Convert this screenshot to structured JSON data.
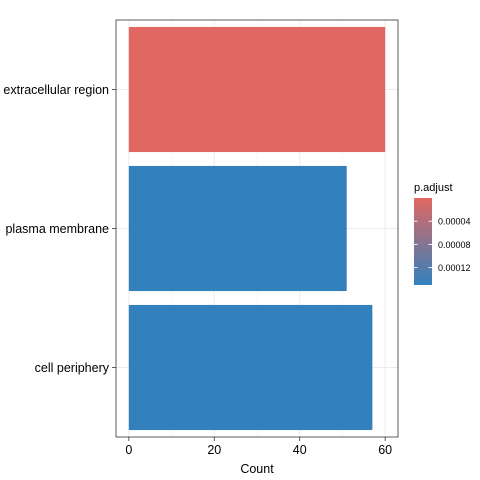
{
  "chart_data": {
    "type": "bar",
    "orientation": "horizontal",
    "title": "",
    "xlabel": "Count",
    "ylabel": "",
    "categories": [
      "extracellular region",
      "plasma membrane",
      "cell periphery"
    ],
    "values": [
      60,
      51,
      57
    ],
    "bar_colors": [
      "#e06762",
      "#3281bd",
      "#3281bd"
    ],
    "xlim": [
      -3,
      63
    ],
    "x_ticks": [
      0,
      20,
      40,
      60
    ],
    "x_tick_labels": [
      "0",
      "20",
      "40",
      "60"
    ],
    "grid": true,
    "legend": {
      "title": "p.adjust",
      "placement": "right",
      "colors": {
        "low": "#e06762",
        "high": "#3281bd"
      },
      "range": [
        0,
        0.00015
      ],
      "ticks": [
        4e-05,
        8e-05,
        0.00012
      ],
      "tick_labels": [
        "0.00004",
        "0.00008",
        "0.00012"
      ]
    }
  }
}
